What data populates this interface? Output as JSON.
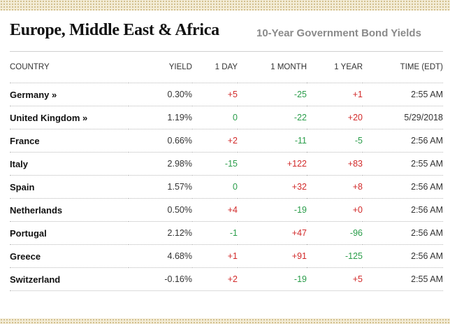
{
  "header": {
    "title": "Europe, Middle East & Africa",
    "subtitle": "10-Year Government Bond Yields"
  },
  "table": {
    "columns": [
      "COUNTRY",
      "YIELD",
      "1 DAY",
      "1 MONTH",
      "1 YEAR",
      "TIME (EDT)"
    ],
    "rows": [
      {
        "country": "Germany »",
        "yield": "0.30%",
        "day": "+5",
        "month": "-25",
        "year": "+1",
        "time": "2:55 AM"
      },
      {
        "country": "United Kingdom »",
        "yield": "1.19%",
        "day": "0",
        "month": "-22",
        "year": "+20",
        "time": "5/29/2018"
      },
      {
        "country": "France",
        "yield": "0.66%",
        "day": "+2",
        "month": "-11",
        "year": "-5",
        "time": "2:56 AM"
      },
      {
        "country": "Italy",
        "yield": "2.98%",
        "day": "-15",
        "month": "+122",
        "year": "+83",
        "time": "2:55 AM"
      },
      {
        "country": "Spain",
        "yield": "1.57%",
        "day": "0",
        "month": "+32",
        "year": "+8",
        "time": "2:56 AM"
      },
      {
        "country": "Netherlands",
        "yield": "0.50%",
        "day": "+4",
        "month": "-19",
        "year": "+0",
        "time": "2:56 AM"
      },
      {
        "country": "Portugal",
        "yield": "2.12%",
        "day": "-1",
        "month": "+47",
        "year": "-96",
        "time": "2:56 AM"
      },
      {
        "country": "Greece",
        "yield": "4.68%",
        "day": "+1",
        "month": "+91",
        "year": "-125",
        "time": "2:56 AM"
      },
      {
        "country": "Switzerland",
        "yield": "-0.16%",
        "day": "+2",
        "month": "-19",
        "year": "+5",
        "time": "2:55 AM"
      }
    ]
  },
  "colors": {
    "positive": "#d22a2a",
    "negative": "#2a9d4a",
    "subtitle": "#8a8a8a",
    "band": "#f3ecd6"
  }
}
